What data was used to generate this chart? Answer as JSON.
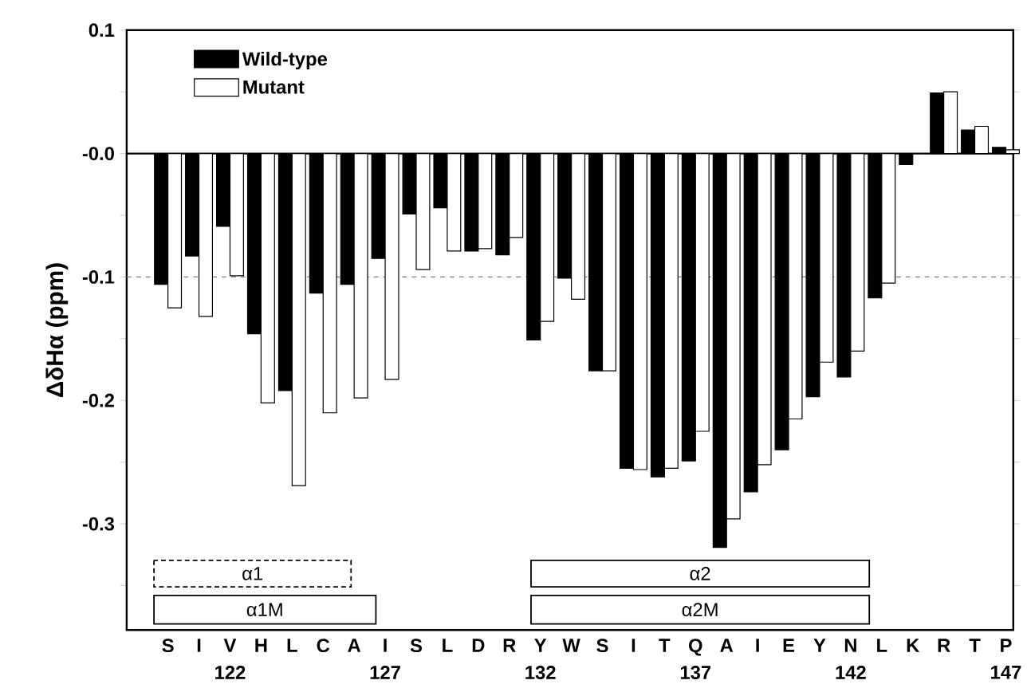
{
  "chart_data": {
    "type": "bar",
    "ylabel": "ΔδHα (ppm)",
    "categories": [
      "S",
      "I",
      "V",
      "H",
      "L",
      "C",
      "A",
      "I",
      "S",
      "L",
      "D",
      "R",
      "Y",
      "W",
      "S",
      "I",
      "T",
      "Q",
      "A",
      "I",
      "E",
      "Y",
      "N",
      "L",
      "K",
      "R",
      "T",
      "P"
    ],
    "series": [
      {
        "name": "Wild-type",
        "color": "#000000",
        "values": [
          -0.106,
          -0.083,
          -0.059,
          -0.146,
          -0.192,
          -0.113,
          -0.106,
          -0.085,
          -0.049,
          -0.044,
          -0.079,
          -0.082,
          -0.151,
          -0.101,
          -0.176,
          -0.255,
          -0.262,
          -0.249,
          -0.319,
          -0.274,
          -0.24,
          -0.197,
          -0.181,
          -0.117,
          -0.009,
          0.049,
          0.019,
          0.005
        ]
      },
      {
        "name": "Mutant",
        "color": "#ffffff",
        "values": [
          -0.125,
          -0.132,
          -0.099,
          -0.202,
          -0.269,
          -0.21,
          -0.198,
          -0.183,
          -0.094,
          -0.079,
          -0.077,
          -0.068,
          -0.136,
          -0.118,
          -0.176,
          -0.256,
          -0.255,
          -0.225,
          -0.296,
          -0.252,
          -0.215,
          -0.169,
          -0.16,
          -0.105,
          null,
          0.05,
          0.022,
          0.003
        ]
      }
    ],
    "ylim": [
      -0.386,
      0.1
    ],
    "yticks": [
      0.1,
      {
        "value": 0.05,
        "label": null
      },
      {
        "value": 0,
        "label": "-0.0"
      },
      {
        "value": -0.05,
        "label": null
      },
      -0.1,
      {
        "value": -0.15,
        "label": null
      },
      -0.2,
      {
        "value": -0.25,
        "label": null
      },
      -0.3,
      {
        "value": -0.35,
        "label": null
      }
    ],
    "ref_lines": [
      {
        "axis": "y",
        "value": -0.1,
        "color": "#808080",
        "line_style": "dashed"
      }
    ],
    "legend": "top left",
    "annotations": [
      "122",
      "127",
      "132",
      "137",
      "142",
      "147",
      "α1",
      "α1M",
      "α2",
      "α2M"
    ]
  }
}
